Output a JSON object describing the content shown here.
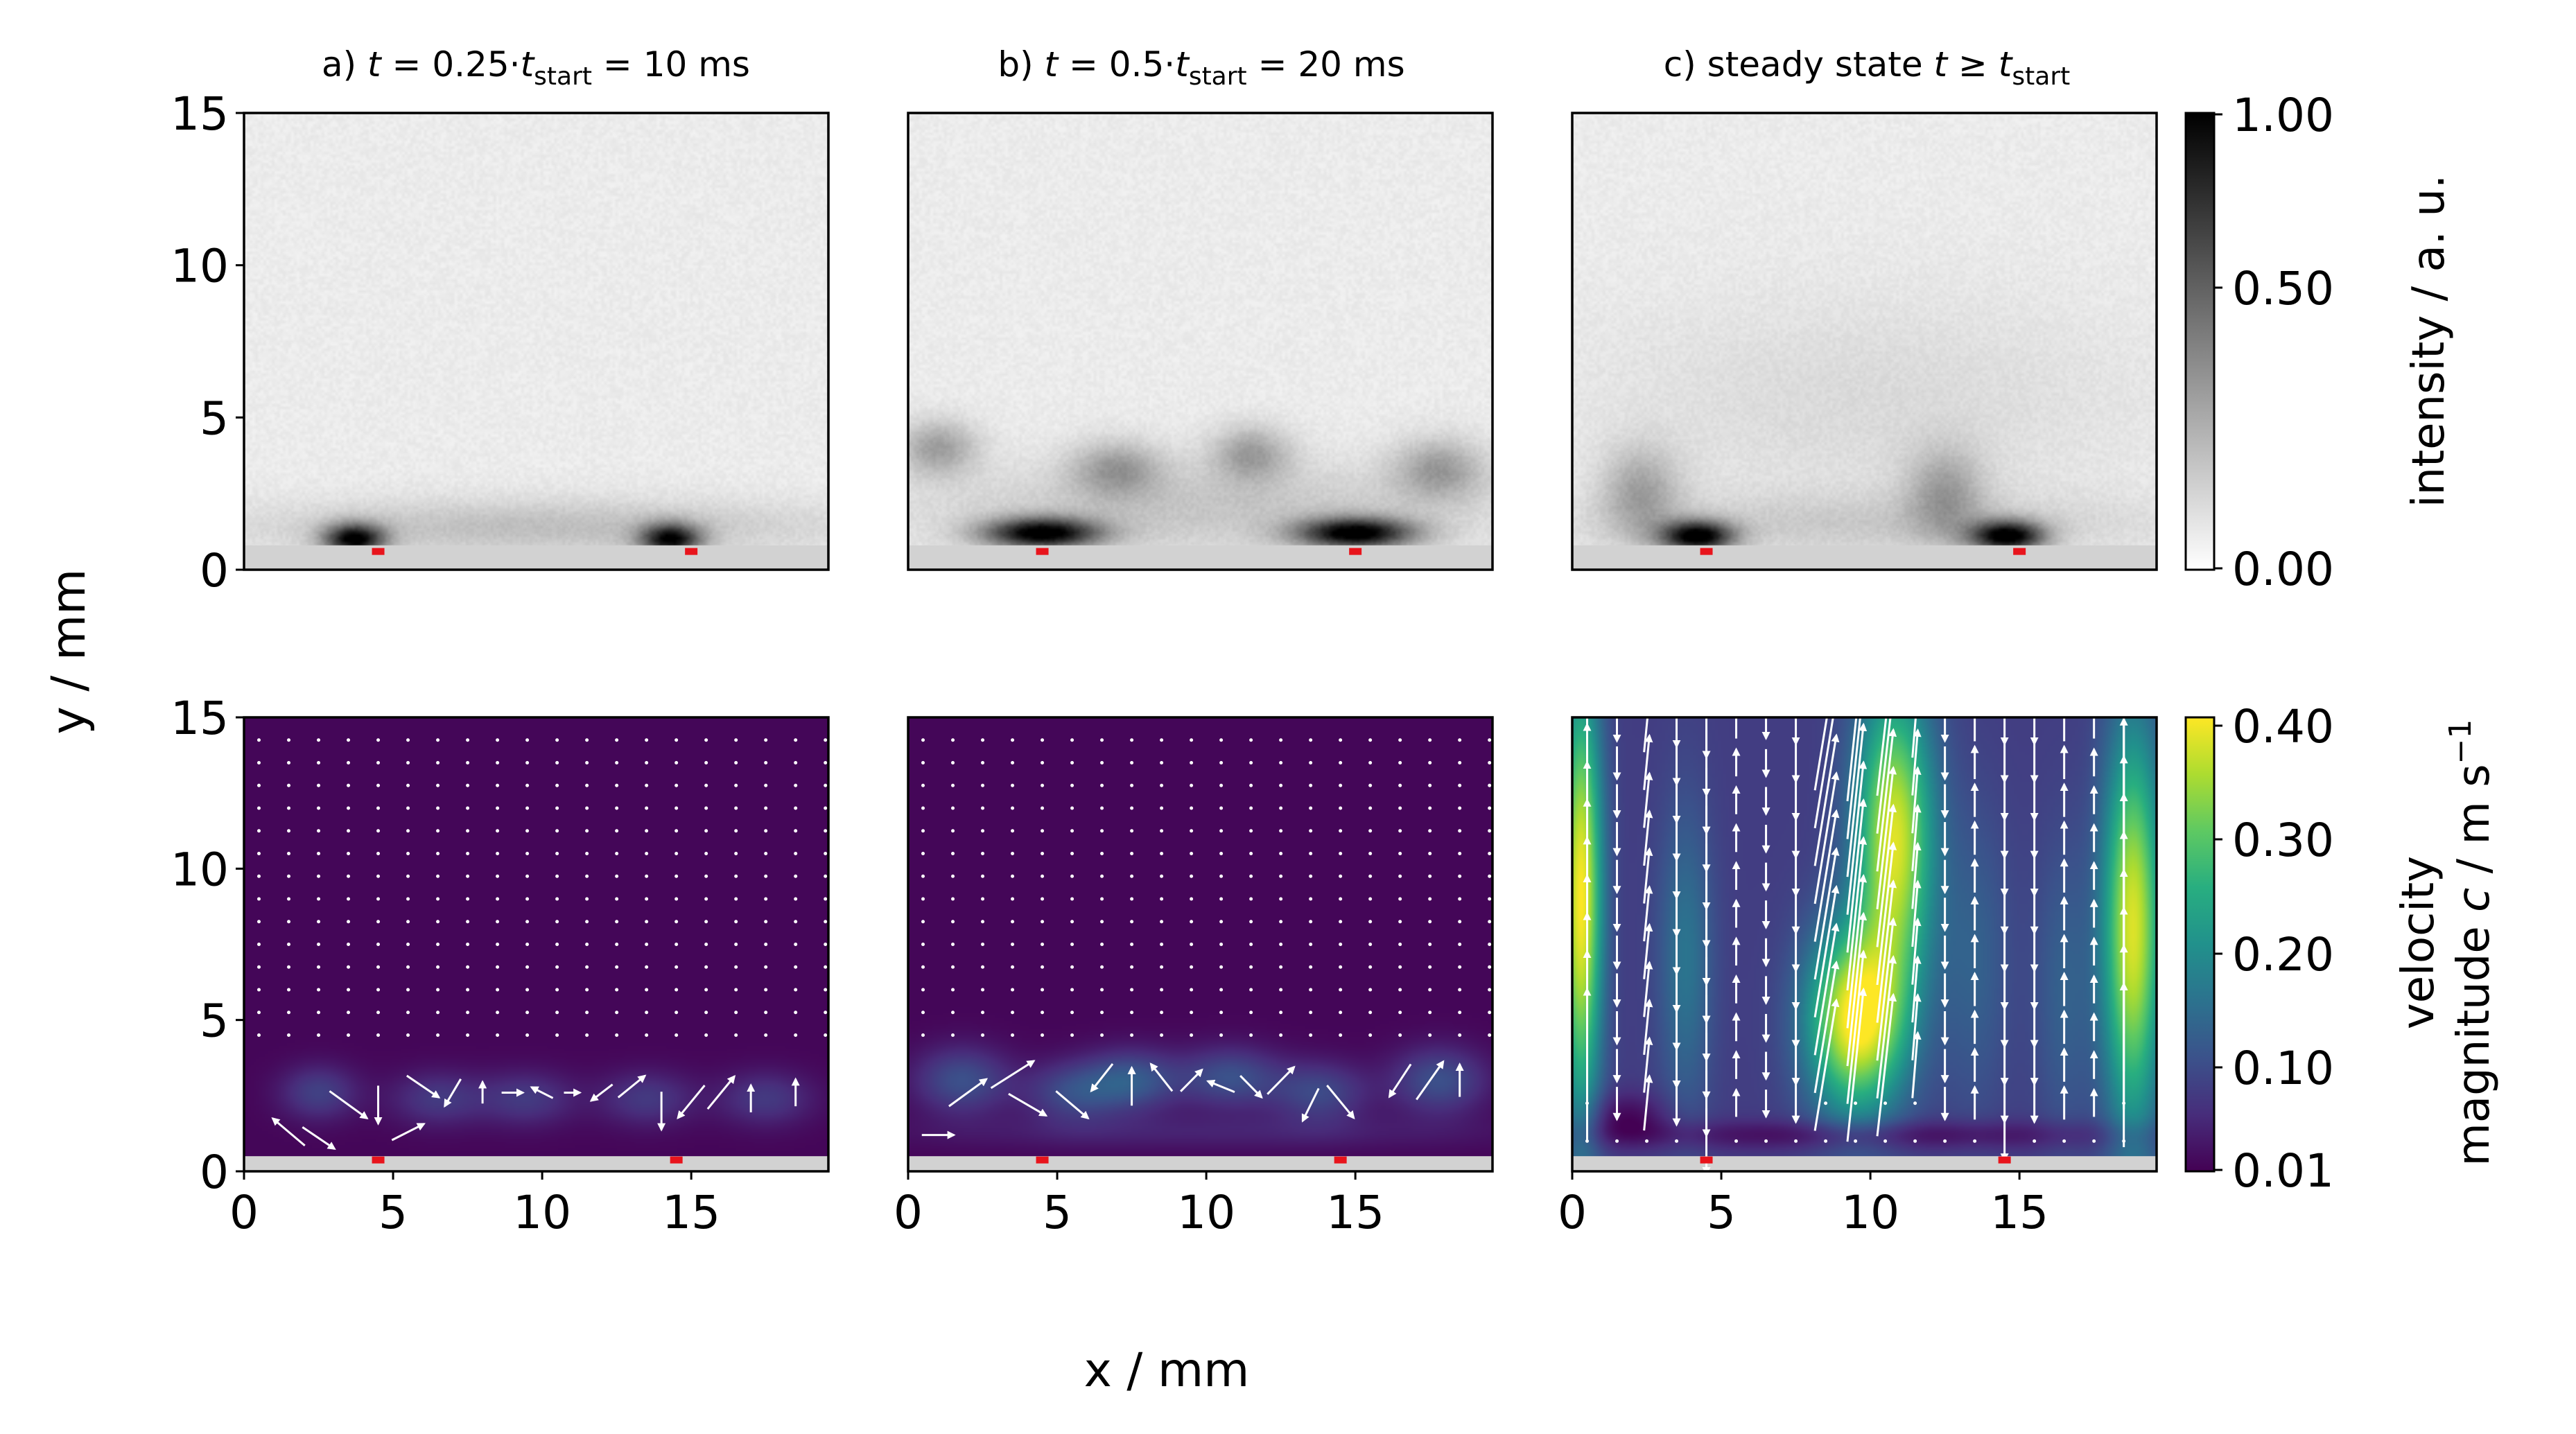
{
  "panels": {
    "a": {
      "prefix": "a) ",
      "t_var": "t",
      "mid": " = 0.25·",
      "tsub_var": "t",
      "sub": "start",
      "suffix": " = 10 ms"
    },
    "b": {
      "prefix": "b) ",
      "t_var": "t",
      "mid": " = 0.5·",
      "tsub_var": "t",
      "sub": "start",
      "suffix": " = 20 ms"
    },
    "c": {
      "prefix": "c) steady state ",
      "t_var": "t",
      "mid": " ≥  ",
      "tsub_var": "t",
      "sub": "start",
      "suffix": ""
    }
  },
  "axes": {
    "xlabel": "x / mm",
    "ylabel": "y / mm"
  },
  "colorbars": {
    "intensity": {
      "label": "intensity / a. u.",
      "ticks": [
        "1.00",
        "0.50",
        "0.00"
      ],
      "colormap": "gray_r"
    },
    "velocity": {
      "label_line1": "velocity",
      "label_line2_pre": "magnitude ",
      "label_line2_var": "c",
      "label_line2_post": " / m s",
      "label_exp": "−1",
      "ticks": [
        "0.40",
        "0.30",
        "0.20",
        "0.10",
        "0.01"
      ],
      "colormap": "viridis"
    }
  },
  "colors": {
    "marker": "#e8141c",
    "wall": "#d2d2d2",
    "arrow": "#ffffff"
  },
  "chart_data": [
    {
      "type": "heatmap",
      "panel": "a",
      "quantity": "intensity",
      "x_ticks": [
        "0",
        "5",
        "10",
        "15"
      ],
      "y_ticks": [
        "0",
        "5",
        "10",
        "15"
      ],
      "xlim": [
        0,
        19.6
      ],
      "ylim": [
        0,
        15
      ],
      "wall_top_y": 0.8,
      "markers_x": [
        4.5,
        15.0
      ],
      "blobs": [
        {
          "x": 3.7,
          "y": 1.0,
          "sx": 1.0,
          "sy": 0.5,
          "a": 0.9
        },
        {
          "x": 14.3,
          "y": 1.0,
          "sx": 1.0,
          "sy": 0.5,
          "a": 0.85
        },
        {
          "x": 10.0,
          "y": 1.4,
          "sx": 10.0,
          "sy": 0.9,
          "a": 0.18
        }
      ]
    },
    {
      "type": "heatmap",
      "panel": "b",
      "quantity": "intensity",
      "x_ticks": [
        "0",
        "5",
        "10",
        "15"
      ],
      "y_ticks": [
        "0",
        "5",
        "10",
        "15"
      ],
      "xlim": [
        0,
        19.6
      ],
      "ylim": [
        0,
        15
      ],
      "wall_top_y": 0.8,
      "markers_x": [
        4.5,
        15.0
      ],
      "blobs": [
        {
          "x": 4.5,
          "y": 1.2,
          "sx": 1.9,
          "sy": 0.5,
          "a": 0.95
        },
        {
          "x": 15.0,
          "y": 1.2,
          "sx": 1.9,
          "sy": 0.5,
          "a": 0.95
        },
        {
          "x": 1.0,
          "y": 4.0,
          "sx": 1.3,
          "sy": 0.9,
          "a": 0.3
        },
        {
          "x": 7.0,
          "y": 3.3,
          "sx": 1.5,
          "sy": 0.9,
          "a": 0.3
        },
        {
          "x": 11.5,
          "y": 3.8,
          "sx": 1.3,
          "sy": 0.9,
          "a": 0.3
        },
        {
          "x": 17.8,
          "y": 3.3,
          "sx": 1.5,
          "sy": 1.0,
          "a": 0.3
        },
        {
          "x": 10.0,
          "y": 2.0,
          "sx": 10.0,
          "sy": 1.5,
          "a": 0.15
        }
      ]
    },
    {
      "type": "heatmap",
      "panel": "c",
      "quantity": "intensity",
      "x_ticks": [
        "0",
        "5",
        "10",
        "15"
      ],
      "y_ticks": [
        "0",
        "5",
        "10",
        "15"
      ],
      "xlim": [
        0,
        19.6
      ],
      "ylim": [
        0,
        15
      ],
      "wall_top_y": 0.8,
      "markers_x": [
        4.5,
        15.0
      ],
      "blobs": [
        {
          "x": 4.2,
          "y": 1.1,
          "sx": 1.2,
          "sy": 0.5,
          "a": 0.95
        },
        {
          "x": 14.6,
          "y": 1.1,
          "sx": 1.2,
          "sy": 0.5,
          "a": 0.95
        },
        {
          "x": 2.3,
          "y": 2.5,
          "sx": 1.3,
          "sy": 1.5,
          "a": 0.28
        },
        {
          "x": 12.5,
          "y": 2.5,
          "sx": 1.3,
          "sy": 1.5,
          "a": 0.28
        },
        {
          "x": 10.0,
          "y": 5.5,
          "sx": 9.0,
          "sy": 3.5,
          "a": 0.07
        },
        {
          "x": 10.0,
          "y": 1.5,
          "sx": 10.0,
          "sy": 1.0,
          "a": 0.12
        }
      ]
    },
    {
      "type": "heatmap",
      "panel": "a",
      "quantity": "velocity magnitude",
      "x_ticks": [
        "0",
        "5",
        "10",
        "15"
      ],
      "y_ticks": [
        "0",
        "5",
        "10",
        "15"
      ],
      "xlim": [
        0,
        19.6
      ],
      "ylim": [
        0,
        15
      ],
      "wall_top_y": 0.5,
      "markers_x": [
        4.5,
        14.5
      ],
      "base_value": 0.015,
      "blobs": [
        {
          "x": 2.5,
          "y": 2.6,
          "sx": 1.3,
          "sy": 0.9,
          "v": 0.07
        },
        {
          "x": 6.5,
          "y": 2.4,
          "sx": 1.6,
          "sy": 0.9,
          "v": 0.06
        },
        {
          "x": 9.5,
          "y": 2.4,
          "sx": 1.6,
          "sy": 0.9,
          "v": 0.06
        },
        {
          "x": 13.5,
          "y": 2.4,
          "sx": 1.6,
          "sy": 0.9,
          "v": 0.06
        },
        {
          "x": 17.5,
          "y": 2.4,
          "sx": 1.6,
          "sy": 0.9,
          "v": 0.06
        }
      ],
      "vectors": {
        "grid_x_start": 0.5,
        "grid_x_step": 1.0,
        "grid_y_start": 0.7,
        "grid_y_step": 0.75,
        "rows_above_scale": 0.02,
        "near_wall": [
          {
            "x": 1.5,
            "y": 1.3,
            "u": -0.06,
            "v": 0.05
          },
          {
            "x": 2.5,
            "y": 1.1,
            "u": 0.06,
            "v": -0.04
          },
          {
            "x": 3.5,
            "y": 2.2,
            "u": 0.07,
            "v": -0.05
          },
          {
            "x": 4.5,
            "y": 2.2,
            "u": 0.0,
            "v": -0.07
          },
          {
            "x": 5.5,
            "y": 1.3,
            "u": 0.06,
            "v": 0.03
          },
          {
            "x": 6.0,
            "y": 2.8,
            "u": 0.06,
            "v": -0.04
          },
          {
            "x": 7.0,
            "y": 2.6,
            "u": -0.03,
            "v": -0.05
          },
          {
            "x": 8.0,
            "y": 2.6,
            "u": 0.0,
            "v": 0.04
          },
          {
            "x": 9.0,
            "y": 2.6,
            "u": 0.04,
            "v": 0.0
          },
          {
            "x": 10.0,
            "y": 2.6,
            "u": -0.04,
            "v": 0.02
          },
          {
            "x": 11.0,
            "y": 2.6,
            "u": 0.03,
            "v": 0.0
          },
          {
            "x": 12.0,
            "y": 2.6,
            "u": -0.04,
            "v": -0.03
          },
          {
            "x": 13.0,
            "y": 2.8,
            "u": 0.05,
            "v": 0.04
          },
          {
            "x": 14.0,
            "y": 2.0,
            "u": 0.0,
            "v": -0.07
          },
          {
            "x": 15.0,
            "y": 2.3,
            "u": -0.05,
            "v": -0.06
          },
          {
            "x": 16.0,
            "y": 2.6,
            "u": 0.05,
            "v": 0.06
          },
          {
            "x": 17.0,
            "y": 2.4,
            "u": 0.0,
            "v": 0.05
          },
          {
            "x": 18.5,
            "y": 2.6,
            "u": 0.0,
            "v": 0.05
          }
        ]
      }
    },
    {
      "type": "heatmap",
      "panel": "b",
      "quantity": "velocity magnitude",
      "x_ticks": [
        "0",
        "5",
        "10",
        "15"
      ],
      "y_ticks": [
        "0",
        "5",
        "10",
        "15"
      ],
      "xlim": [
        0,
        19.6
      ],
      "ylim": [
        0,
        15
      ],
      "wall_top_y": 0.5,
      "markers_x": [
        4.5,
        14.5
      ],
      "base_value": 0.015,
      "blobs": [
        {
          "x": 1.8,
          "y": 3.0,
          "sx": 1.6,
          "sy": 1.1,
          "v": 0.09
        },
        {
          "x": 5.5,
          "y": 2.6,
          "sx": 1.6,
          "sy": 1.0,
          "v": 0.08
        },
        {
          "x": 7.5,
          "y": 3.0,
          "sx": 1.6,
          "sy": 1.0,
          "v": 0.1
        },
        {
          "x": 10.8,
          "y": 3.1,
          "sx": 1.7,
          "sy": 1.0,
          "v": 0.09
        },
        {
          "x": 13.8,
          "y": 2.6,
          "sx": 1.6,
          "sy": 1.0,
          "v": 0.08
        },
        {
          "x": 17.8,
          "y": 3.0,
          "sx": 1.6,
          "sy": 1.1,
          "v": 0.09
        },
        {
          "x": 10.0,
          "y": 1.3,
          "sx": 10.0,
          "sy": 0.6,
          "v": 0.03
        }
      ],
      "vectors": {
        "grid_x_start": 0.5,
        "grid_x_step": 1.0,
        "grid_y_start": 0.7,
        "grid_y_step": 0.75,
        "rows_above_scale": 0.02,
        "near_wall": [
          {
            "x": 1.0,
            "y": 1.2,
            "u": 0.06,
            "v": 0.0
          },
          {
            "x": 2.0,
            "y": 2.6,
            "u": 0.07,
            "v": 0.05
          },
          {
            "x": 3.5,
            "y": 3.2,
            "u": 0.08,
            "v": 0.05
          },
          {
            "x": 4.0,
            "y": 2.2,
            "u": 0.07,
            "v": -0.04
          },
          {
            "x": 5.5,
            "y": 2.2,
            "u": 0.06,
            "v": -0.05
          },
          {
            "x": 6.5,
            "y": 3.1,
            "u": -0.04,
            "v": -0.05
          },
          {
            "x": 7.5,
            "y": 2.8,
            "u": 0.0,
            "v": 0.07
          },
          {
            "x": 8.5,
            "y": 3.1,
            "u": -0.04,
            "v": 0.05
          },
          {
            "x": 9.5,
            "y": 3.0,
            "u": 0.04,
            "v": 0.04
          },
          {
            "x": 10.5,
            "y": 2.8,
            "u": -0.05,
            "v": 0.02
          },
          {
            "x": 11.5,
            "y": 2.8,
            "u": 0.04,
            "v": -0.04
          },
          {
            "x": 12.5,
            "y": 3.0,
            "u": 0.05,
            "v": 0.05
          },
          {
            "x": 13.5,
            "y": 2.2,
            "u": -0.03,
            "v": -0.06
          },
          {
            "x": 14.5,
            "y": 2.3,
            "u": 0.05,
            "v": -0.06
          },
          {
            "x": 16.5,
            "y": 3.0,
            "u": -0.04,
            "v": -0.06
          },
          {
            "x": 17.5,
            "y": 3.0,
            "u": 0.05,
            "v": 0.07
          },
          {
            "x": 18.5,
            "y": 3.0,
            "u": 0.0,
            "v": 0.06
          }
        ]
      }
    },
    {
      "type": "heatmap",
      "panel": "c",
      "quantity": "velocity magnitude",
      "x_ticks": [
        "0",
        "5",
        "10",
        "15"
      ],
      "y_ticks": [
        "0",
        "5",
        "10",
        "15"
      ],
      "xlim": [
        0,
        19.6
      ],
      "ylim": [
        0,
        15
      ],
      "wall_top_y": 0.5,
      "markers_x": [
        4.5,
        14.5
      ],
      "base_value": 0.08,
      "blobs": [
        {
          "x": 0.3,
          "y": 9.0,
          "sx": 0.7,
          "sy": 7.0,
          "v": 0.32
        },
        {
          "x": 9.5,
          "y": 5.0,
          "sx": 1.6,
          "sy": 3.0,
          "v": 0.32
        },
        {
          "x": 10.8,
          "y": 11.0,
          "sx": 1.3,
          "sy": 5.0,
          "v": 0.3
        },
        {
          "x": 18.8,
          "y": 8.0,
          "sx": 1.0,
          "sy": 6.5,
          "v": 0.3
        },
        {
          "x": 3.8,
          "y": 7.0,
          "sx": 0.9,
          "sy": 5.0,
          "v": 0.08
        },
        {
          "x": 13.5,
          "y": 7.0,
          "sx": 1.2,
          "sy": 5.0,
          "v": 0.05
        },
        {
          "x": 16.5,
          "y": 6.0,
          "sx": 1.0,
          "sy": 5.0,
          "v": 0.05
        },
        {
          "x": 1.8,
          "y": 1.8,
          "sx": 1.5,
          "sy": 0.8,
          "v": -0.06
        },
        {
          "x": 10.0,
          "y": 1.2,
          "sx": 10.0,
          "sy": 0.5,
          "v": -0.06
        }
      ],
      "vectors": {
        "grid_x_start": 0.5,
        "grid_x_step": 1.0,
        "grid_y_start": 1.0,
        "grid_y_step": 1.25,
        "columns": [
          {
            "x": 0.5,
            "v": 0.28,
            "u": 0.0,
            "ymin": 2.5
          },
          {
            "x": 1.5,
            "v": -0.06,
            "u": 0.0,
            "ymin": 2.0
          },
          {
            "x": 2.5,
            "v": 0.1,
            "u": 0.01,
            "ymin": 2.0
          },
          {
            "x": 3.5,
            "v": -0.08,
            "u": 0.0,
            "ymin": 2.0
          },
          {
            "x": 4.5,
            "v": -0.12,
            "u": 0.0,
            "ymin": 1.0
          },
          {
            "x": 5.5,
            "v": 0.05,
            "u": 0.0,
            "ymin": 2.0
          },
          {
            "x": 6.5,
            "v": -0.05,
            "u": 0.0,
            "ymin": 2.0
          },
          {
            "x": 7.5,
            "v": -0.07,
            "u": 0.0,
            "ymin": 2.0
          },
          {
            "x": 8.5,
            "v": 0.24,
            "u": 0.04,
            "ymin": 2.5
          },
          {
            "x": 9.5,
            "v": 0.28,
            "u": 0.03,
            "ymin": 2.5
          },
          {
            "x": 10.5,
            "v": 0.26,
            "u": 0.03,
            "ymin": 2.5
          },
          {
            "x": 11.5,
            "v": 0.12,
            "u": 0.01,
            "ymin": 2.5
          },
          {
            "x": 12.5,
            "v": -0.06,
            "u": 0.0,
            "ymin": 2.0
          },
          {
            "x": 13.5,
            "v": 0.06,
            "u": 0.0,
            "ymin": 2.0
          },
          {
            "x": 14.5,
            "v": -0.07,
            "u": 0.0,
            "ymin": 1.0
          },
          {
            "x": 15.5,
            "v": -0.07,
            "u": 0.0,
            "ymin": 2.0
          },
          {
            "x": 16.5,
            "v": 0.06,
            "u": 0.0,
            "ymin": 2.0
          },
          {
            "x": 17.5,
            "v": 0.05,
            "u": 0.0,
            "ymin": 2.0
          },
          {
            "x": 18.5,
            "v": 0.3,
            "u": 0.0,
            "ymin": 2.5
          }
        ]
      }
    }
  ]
}
